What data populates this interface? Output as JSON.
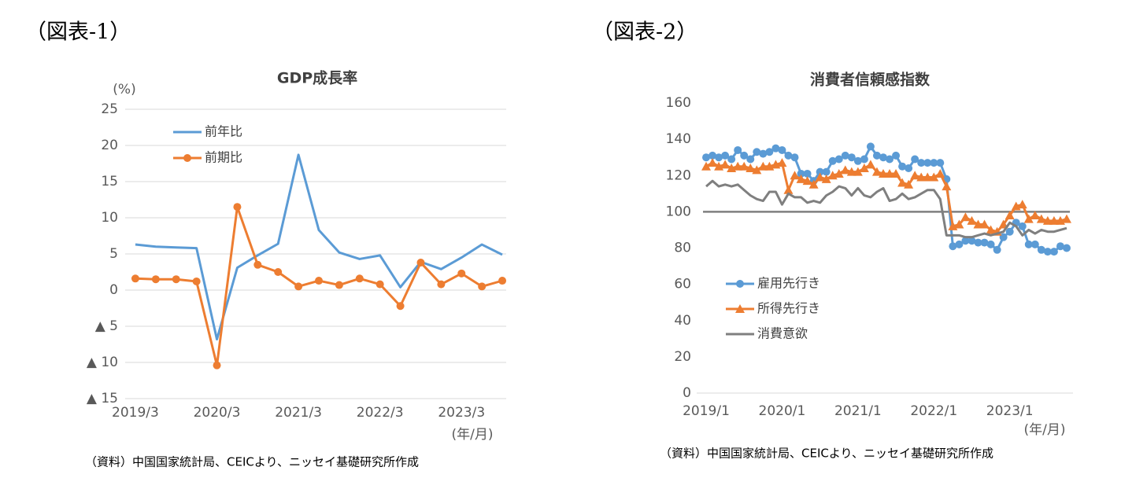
{
  "figure_labels": [
    "（図表-1）",
    "（図表-2）"
  ],
  "sources": [
    "（資料）中国国家統計局、CEICより、ニッセイ基礎研究所作成",
    "（資料）中国国家統計局、CEICより、ニッセイ基礎研究所作成"
  ],
  "chart_data": [
    {
      "type": "line",
      "title": "GDP成長率",
      "y_label": "(%)",
      "x_label": "(年/月)",
      "categories": [
        "2019/3",
        null,
        null,
        null,
        "2020/3",
        null,
        null,
        null,
        "2021/3",
        null,
        null,
        null,
        "2022/3",
        null,
        null,
        null,
        "2023/3",
        null,
        null
      ],
      "series": [
        {
          "name": "前年比",
          "color": "#5b9bd5",
          "values": [
            6.3,
            6.0,
            5.9,
            5.8,
            -6.8,
            3.1,
            4.8,
            6.4,
            18.7,
            8.3,
            5.2,
            4.3,
            4.8,
            0.4,
            3.9,
            2.9,
            4.5,
            6.3,
            4.9
          ]
        },
        {
          "name": "前期比",
          "color": "#ed7d31",
          "marker": "circle",
          "values": [
            1.6,
            1.5,
            1.5,
            1.2,
            -10.4,
            11.5,
            3.5,
            2.5,
            0.5,
            1.3,
            0.7,
            1.6,
            0.8,
            -2.2,
            3.8,
            0.8,
            2.3,
            0.5,
            1.3
          ]
        }
      ],
      "ylim": [
        -15,
        25
      ],
      "yticks": [
        25,
        20,
        15,
        10,
        5,
        0,
        {
          "value": -5,
          "label": "▲ 5"
        },
        {
          "value": -10,
          "label": "▲ 10"
        },
        {
          "value": -15,
          "label": "▲ 15"
        }
      ],
      "grid": true
    },
    {
      "type": "line",
      "title": "消費者信頼感指数",
      "x_label": "(年/月)",
      "categories": [
        "2019/1",
        null,
        null,
        null,
        null,
        null,
        null,
        null,
        null,
        null,
        null,
        null,
        "2020/1",
        null,
        null,
        null,
        null,
        null,
        null,
        null,
        null,
        null,
        null,
        null,
        "2021/1",
        null,
        null,
        null,
        null,
        null,
        null,
        null,
        null,
        null,
        null,
        null,
        "2022/1",
        null,
        null,
        null,
        null,
        null,
        null,
        null,
        null,
        null,
        null,
        null,
        "2023/1",
        null,
        null,
        null,
        null,
        null,
        null,
        null,
        null,
        null
      ],
      "series": [
        {
          "name": "雇用先行き",
          "color": "#5b9bd5",
          "marker": "circle",
          "values": [
            130,
            131,
            130,
            131,
            129,
            134,
            131,
            129,
            133,
            132,
            133,
            135,
            134,
            131,
            130,
            121,
            121,
            117,
            122,
            122,
            128,
            129,
            131,
            130,
            128,
            129,
            136,
            131,
            130,
            129,
            131,
            125,
            124,
            129,
            127,
            127,
            127,
            127,
            118,
            81,
            82,
            84,
            84,
            83,
            83,
            82,
            79,
            86,
            89,
            94,
            92,
            82,
            82,
            79,
            78,
            78,
            81,
            80
          ]
        },
        {
          "name": "所得先行き",
          "color": "#ed7d31",
          "marker": "triangle",
          "values": [
            125,
            127,
            125,
            126,
            124,
            125,
            125,
            124,
            123,
            125,
            125,
            126,
            127,
            112,
            120,
            118,
            117,
            115,
            119,
            118,
            120,
            121,
            123,
            122,
            122,
            124,
            126,
            122,
            121,
            121,
            121,
            116,
            115,
            120,
            119,
            119,
            119,
            121,
            114,
            92,
            93,
            97,
            95,
            93,
            93,
            90,
            89,
            93,
            98,
            103,
            104,
            96,
            98,
            96,
            95,
            95,
            95,
            96
          ]
        },
        {
          "name": "消費意欲",
          "color": "#7f7f7f",
          "values": [
            114,
            117,
            114,
            115,
            114,
            115,
            112,
            109,
            107,
            106,
            111,
            111,
            104,
            110,
            108,
            108,
            105,
            106,
            105,
            109,
            111,
            114,
            113,
            109,
            113,
            109,
            108,
            111,
            113,
            106,
            107,
            110,
            107,
            108,
            110,
            112,
            112,
            107,
            87,
            87,
            87,
            86,
            86,
            87,
            88,
            87,
            88,
            89,
            94,
            92,
            87,
            90,
            88,
            90,
            89,
            89,
            90,
            91
          ]
        }
      ],
      "hline": 100,
      "hline_color": "#7f7f7f",
      "ylim": [
        0,
        160
      ],
      "yticks": [
        0,
        20,
        40,
        60,
        80,
        100,
        120,
        140,
        160
      ],
      "grid": false
    }
  ]
}
